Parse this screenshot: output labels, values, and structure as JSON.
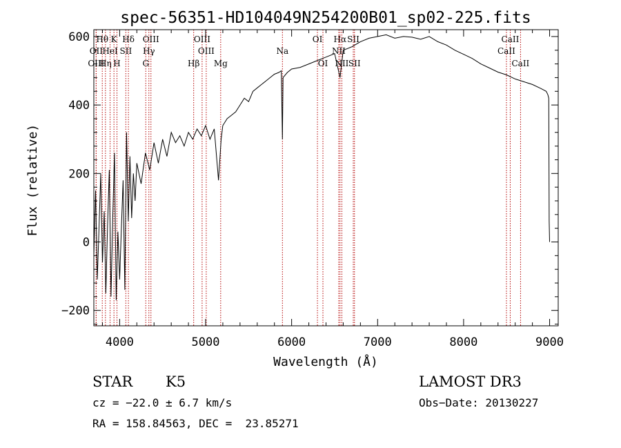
{
  "chart_data": {
    "type": "line",
    "title": "spec-56351-HD104049N254200B01_sp02-225.fits",
    "xlabel": "Wavelength (Å)",
    "ylabel": "Flux (relative)",
    "xlim": [
      3700,
      9100
    ],
    "ylim": [
      -245,
      620
    ],
    "xticks": [
      4000,
      5000,
      6000,
      7000,
      8000,
      9000
    ],
    "yticks": [
      -200,
      0,
      200,
      400,
      600
    ],
    "spectrum": {
      "name": "flux",
      "x": [
        3700,
        3720,
        3740,
        3760,
        3780,
        3800,
        3820,
        3840,
        3860,
        3880,
        3900,
        3920,
        3940,
        3960,
        3980,
        4000,
        4020,
        4040,
        4060,
        4080,
        4100,
        4120,
        4140,
        4160,
        4180,
        4200,
        4250,
        4300,
        4350,
        4400,
        4450,
        4500,
        4550,
        4600,
        4650,
        4700,
        4750,
        4800,
        4850,
        4900,
        4950,
        5000,
        5050,
        5100,
        5150,
        5180,
        5200,
        5250,
        5300,
        5350,
        5400,
        5450,
        5500,
        5550,
        5600,
        5650,
        5700,
        5750,
        5800,
        5850,
        5880,
        5893,
        5900,
        5950,
        6000,
        6100,
        6200,
        6300,
        6400,
        6500,
        6563,
        6600,
        6700,
        6800,
        6900,
        7000,
        7100,
        7200,
        7300,
        7400,
        7500,
        7600,
        7700,
        7800,
        7900,
        8000,
        8100,
        8200,
        8300,
        8400,
        8500,
        8600,
        8700,
        8800,
        8900,
        8960,
        8980,
        8990,
        8995,
        9000
      ],
      "y": [
        -40,
        150,
        -110,
        40,
        200,
        -60,
        90,
        -150,
        50,
        210,
        -160,
        70,
        260,
        -170,
        30,
        -110,
        40,
        180,
        -140,
        320,
        60,
        250,
        70,
        200,
        120,
        230,
        170,
        260,
        210,
        290,
        230,
        300,
        250,
        320,
        290,
        310,
        280,
        320,
        300,
        330,
        310,
        340,
        300,
        330,
        180,
        300,
        340,
        360,
        370,
        380,
        400,
        420,
        410,
        440,
        450,
        460,
        470,
        480,
        490,
        495,
        500,
        300,
        480,
        495,
        505,
        510,
        520,
        530,
        540,
        550,
        480,
        560,
        570,
        585,
        595,
        600,
        605,
        595,
        600,
        598,
        592,
        600,
        585,
        575,
        560,
        548,
        536,
        520,
        508,
        496,
        488,
        476,
        468,
        460,
        448,
        440,
        430,
        420,
        60,
        0
      ]
    },
    "lines": [
      {
        "label": "Hθ",
        "wavelength": 3798,
        "row": 1
      },
      {
        "label": "OII",
        "wavelength": 3727,
        "row": 2
      },
      {
        "label": "OIII",
        "wavelength": 3727,
        "row": 3
      },
      {
        "label": "Hη",
        "wavelength": 3835,
        "row": 3
      },
      {
        "label": "HeI",
        "wavelength": 3889,
        "row": 2
      },
      {
        "label": "K",
        "wavelength": 3934,
        "row": 1
      },
      {
        "label": "H",
        "wavelength": 3969,
        "row": 3
      },
      {
        "label": "SII",
        "wavelength": 4072,
        "row": 2
      },
      {
        "label": "Hδ",
        "wavelength": 4102,
        "row": 1
      },
      {
        "label": "OIII",
        "wavelength": 4364,
        "row": 1
      },
      {
        "label": "Hγ",
        "wavelength": 4340,
        "row": 2
      },
      {
        "label": "G",
        "wavelength": 4304,
        "row": 3
      },
      {
        "label": "Hβ",
        "wavelength": 4861,
        "row": 3
      },
      {
        "label": "OIII",
        "wavelength": 4959,
        "row": 1
      },
      {
        "label": "OIII",
        "wavelength": 5007,
        "row": 2
      },
      {
        "label": "Mg",
        "wavelength": 5175,
        "row": 3
      },
      {
        "label": "Na",
        "wavelength": 5893,
        "row": 2
      },
      {
        "label": "OI",
        "wavelength": 6300,
        "row": 1
      },
      {
        "label": "OI",
        "wavelength": 6364,
        "row": 3
      },
      {
        "label": "Hα",
        "wavelength": 6563,
        "row": 1
      },
      {
        "label": "NII",
        "wavelength": 6548,
        "row": 2
      },
      {
        "label": "NII",
        "wavelength": 6584,
        "row": 3
      },
      {
        "label": "SII",
        "wavelength": 6717,
        "row": 1
      },
      {
        "label": "SII",
        "wavelength": 6731,
        "row": 3
      },
      {
        "label": "CaII",
        "wavelength": 8542,
        "row": 1
      },
      {
        "label": "CaII",
        "wavelength": 8498,
        "row": 2
      },
      {
        "label": "CaII",
        "wavelength": 8662,
        "row": 3
      }
    ],
    "colors": {
      "spectrum": "#000000",
      "lines": "#b40000",
      "axes": "#000000"
    }
  },
  "info": {
    "class_label": "STAR",
    "subclass_label": "K5",
    "survey_label": "LAMOST DR3",
    "redshift_text": "cz = −22.0 ± 6.7 km/s",
    "obs_date_text": "Obs−Date: 20130227",
    "coords_text": "RA = 158.84563, DEC =  23.85271"
  }
}
